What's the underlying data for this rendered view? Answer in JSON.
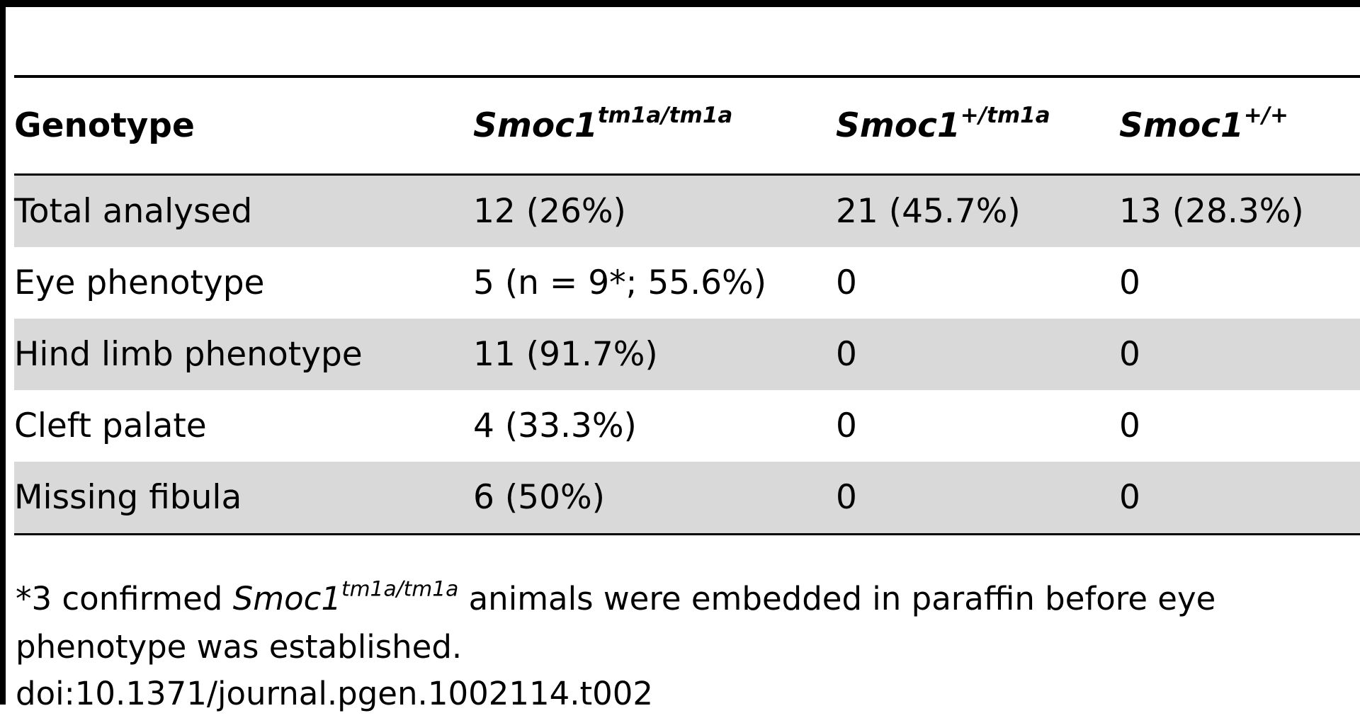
{
  "table": {
    "header": {
      "genotype_label": "Genotype",
      "col2_gene": "Smoc1",
      "col2_sup": "tm1a/tm1a",
      "col3_gene": "Smoc1",
      "col3_sup": "+/tm1a",
      "col4_gene": "Smoc1",
      "col4_sup": "+/+"
    },
    "rows": [
      {
        "label": "Total analysed",
        "c2": "12 (26%)",
        "c3": "21 (45.7%)",
        "c4": "13 (28.3%)"
      },
      {
        "label": "Eye phenotype",
        "c2": "5 (n = 9*; 55.6%)",
        "c3": "0",
        "c4": "0"
      },
      {
        "label": "Hind limb phenotype",
        "c2": "11 (91.7%)",
        "c3": "0",
        "c4": "0"
      },
      {
        "label": "Cleft palate",
        "c2": "4 (33.3%)",
        "c3": "0",
        "c4": "0"
      },
      {
        "label": "Missing fibula",
        "c2": "6 (50%)",
        "c3": "0",
        "c4": "0"
      }
    ]
  },
  "footnote": {
    "prefix": "*3 confirmed ",
    "gene": "Smoc1",
    "gene_sup": "tm1a/tm1a",
    "suffix": " animals were embedded in paraffin before eye phenotype was established."
  },
  "doi": "doi:10.1371/journal.pgen.1002114.t002",
  "colors": {
    "row_shade": "#d9d9d9",
    "rule": "#000000",
    "background": "#ffffff"
  }
}
